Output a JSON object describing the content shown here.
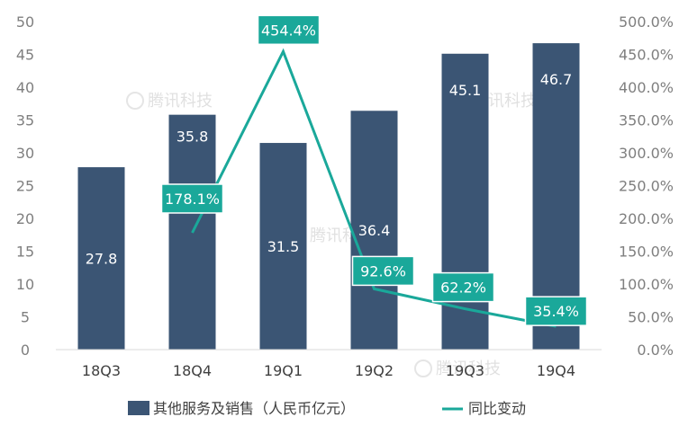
{
  "chart_data": {
    "type": "bar",
    "categories": [
      "18Q3",
      "18Q4",
      "19Q1",
      "19Q2",
      "19Q3",
      "19Q4"
    ],
    "series": [
      {
        "name": "其他服务及销售（人民币亿元）",
        "type": "bar",
        "axis": "left",
        "values": [
          27.8,
          35.8,
          31.5,
          36.4,
          45.1,
          46.7
        ],
        "labels": [
          "27.8",
          "35.8",
          "31.5",
          "36.4",
          "45.1",
          "46.7"
        ],
        "color": "#3b5574"
      },
      {
        "name": "同比变动",
        "type": "line",
        "axis": "right",
        "values": [
          null,
          178.1,
          454.4,
          92.6,
          62.2,
          35.4
        ],
        "labels": [
          "",
          "178.1%",
          "454.4%",
          "92.6%",
          "62.2%",
          "35.4%"
        ],
        "color": "#1aa89a"
      }
    ],
    "y_left": {
      "min": 0,
      "max": 50,
      "step": 5,
      "tick_labels": [
        "0",
        "5",
        "10",
        "15",
        "20",
        "25",
        "30",
        "35",
        "40",
        "45",
        "50"
      ]
    },
    "y_right": {
      "min": 0,
      "max": 500,
      "step": 50,
      "tick_labels": [
        "0.0%",
        "50.0%",
        "100.0%",
        "150.0%",
        "200.0%",
        "250.0%",
        "300.0%",
        "350.0%",
        "400.0%",
        "450.0%",
        "500.0%"
      ]
    },
    "grid": false,
    "legend_position": "bottom",
    "watermark": "腾讯科技"
  }
}
